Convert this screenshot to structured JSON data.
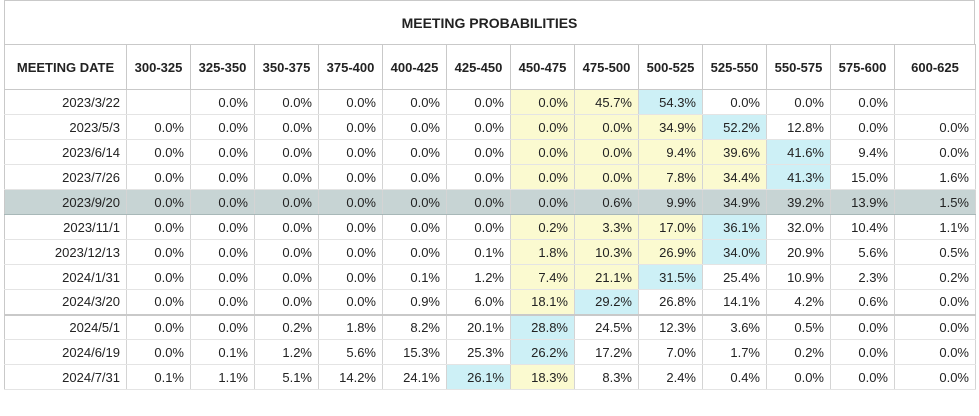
{
  "title": "MEETING PROBABILITIES",
  "columns": [
    "MEETING DATE",
    "300-325",
    "325-350",
    "350-375",
    "375-400",
    "400-425",
    "425-450",
    "450-475",
    "475-500",
    "500-525",
    "525-550",
    "550-575",
    "575-600",
    "600-625"
  ],
  "rows": [
    {
      "date": "2023/3/22",
      "values": [
        "",
        "0.0%",
        "0.0%",
        "0.0%",
        "0.0%",
        "0.0%",
        "0.0%",
        "45.7%",
        "54.3%",
        "0.0%",
        "0.0%",
        "0.0%",
        ""
      ],
      "highlight": [
        "",
        "",
        "",
        "",
        "",
        "",
        "y",
        "y",
        "b",
        "",
        "",
        "",
        ""
      ]
    },
    {
      "date": "2023/5/3",
      "values": [
        "0.0%",
        "0.0%",
        "0.0%",
        "0.0%",
        "0.0%",
        "0.0%",
        "0.0%",
        "0.0%",
        "34.9%",
        "52.2%",
        "12.8%",
        "0.0%",
        "0.0%"
      ],
      "highlight": [
        "",
        "",
        "",
        "",
        "",
        "",
        "y",
        "y",
        "y",
        "b",
        "",
        "",
        ""
      ]
    },
    {
      "date": "2023/6/14",
      "values": [
        "0.0%",
        "0.0%",
        "0.0%",
        "0.0%",
        "0.0%",
        "0.0%",
        "0.0%",
        "0.0%",
        "9.4%",
        "39.6%",
        "41.6%",
        "9.4%",
        "0.0%"
      ],
      "highlight": [
        "",
        "",
        "",
        "",
        "",
        "",
        "y",
        "y",
        "y",
        "y",
        "b",
        "",
        ""
      ]
    },
    {
      "date": "2023/7/26",
      "values": [
        "0.0%",
        "0.0%",
        "0.0%",
        "0.0%",
        "0.0%",
        "0.0%",
        "0.0%",
        "0.0%",
        "7.8%",
        "34.4%",
        "41.3%",
        "15.0%",
        "1.6%"
      ],
      "highlight": [
        "",
        "",
        "",
        "",
        "",
        "",
        "y",
        "y",
        "y",
        "y",
        "b",
        "",
        ""
      ]
    },
    {
      "date": "2023/9/20",
      "values": [
        "0.0%",
        "0.0%",
        "0.0%",
        "0.0%",
        "0.0%",
        "0.0%",
        "0.0%",
        "0.6%",
        "9.9%",
        "34.9%",
        "39.2%",
        "13.9%",
        "1.5%"
      ],
      "highlight": [
        "",
        "",
        "",
        "",
        "",
        "",
        "",
        "",
        "",
        "",
        "",
        "",
        ""
      ],
      "selected": true
    },
    {
      "date": "2023/11/1",
      "values": [
        "0.0%",
        "0.0%",
        "0.0%",
        "0.0%",
        "0.0%",
        "0.0%",
        "0.2%",
        "3.3%",
        "17.0%",
        "36.1%",
        "32.0%",
        "10.4%",
        "1.1%"
      ],
      "highlight": [
        "",
        "",
        "",
        "",
        "",
        "",
        "y",
        "y",
        "y",
        "b",
        "",
        "",
        ""
      ]
    },
    {
      "date": "2023/12/13",
      "values": [
        "0.0%",
        "0.0%",
        "0.0%",
        "0.0%",
        "0.0%",
        "0.1%",
        "1.8%",
        "10.3%",
        "26.9%",
        "34.0%",
        "20.9%",
        "5.6%",
        "0.5%"
      ],
      "highlight": [
        "",
        "",
        "",
        "",
        "",
        "",
        "y",
        "y",
        "y",
        "b",
        "",
        "",
        ""
      ]
    },
    {
      "date": "2024/1/31",
      "values": [
        "0.0%",
        "0.0%",
        "0.0%",
        "0.0%",
        "0.1%",
        "1.2%",
        "7.4%",
        "21.1%",
        "31.5%",
        "25.4%",
        "10.9%",
        "2.3%",
        "0.2%"
      ],
      "highlight": [
        "",
        "",
        "",
        "",
        "",
        "",
        "y",
        "y",
        "b",
        "",
        "",
        "",
        ""
      ]
    },
    {
      "date": "2024/3/20",
      "values": [
        "0.0%",
        "0.0%",
        "0.0%",
        "0.0%",
        "0.9%",
        "6.0%",
        "18.1%",
        "29.2%",
        "26.8%",
        "14.1%",
        "4.2%",
        "0.6%",
        "0.0%"
      ],
      "highlight": [
        "",
        "",
        "",
        "",
        "",
        "",
        "y",
        "b",
        "",
        "",
        "",
        "",
        ""
      ]
    },
    {
      "date": "2024/5/1",
      "values": [
        "0.0%",
        "0.0%",
        "0.2%",
        "1.8%",
        "8.2%",
        "20.1%",
        "28.8%",
        "24.5%",
        "12.3%",
        "3.6%",
        "0.5%",
        "0.0%",
        "0.0%"
      ],
      "highlight": [
        "",
        "",
        "",
        "",
        "",
        "",
        "b",
        "",
        "",
        "",
        "",
        "",
        ""
      ],
      "separator": true
    },
    {
      "date": "2024/6/19",
      "values": [
        "0.0%",
        "0.1%",
        "1.2%",
        "5.6%",
        "15.3%",
        "25.3%",
        "26.2%",
        "17.2%",
        "7.0%",
        "1.7%",
        "0.2%",
        "0.0%",
        "0.0%"
      ],
      "highlight": [
        "",
        "",
        "",
        "",
        "",
        "",
        "b",
        "",
        "",
        "",
        "",
        "",
        ""
      ]
    },
    {
      "date": "2024/7/31",
      "values": [
        "0.1%",
        "1.1%",
        "5.1%",
        "14.2%",
        "24.1%",
        "26.1%",
        "18.3%",
        "8.3%",
        "2.4%",
        "0.4%",
        "0.0%",
        "0.0%",
        "0.0%"
      ],
      "highlight": [
        "",
        "",
        "",
        "",
        "",
        "b",
        "y",
        "",
        "",
        "",
        "",
        "",
        ""
      ]
    }
  ],
  "colors": {
    "yellow": "#fbfad0",
    "blue": "#cdf0f6",
    "selected": "#c7d4d4"
  }
}
